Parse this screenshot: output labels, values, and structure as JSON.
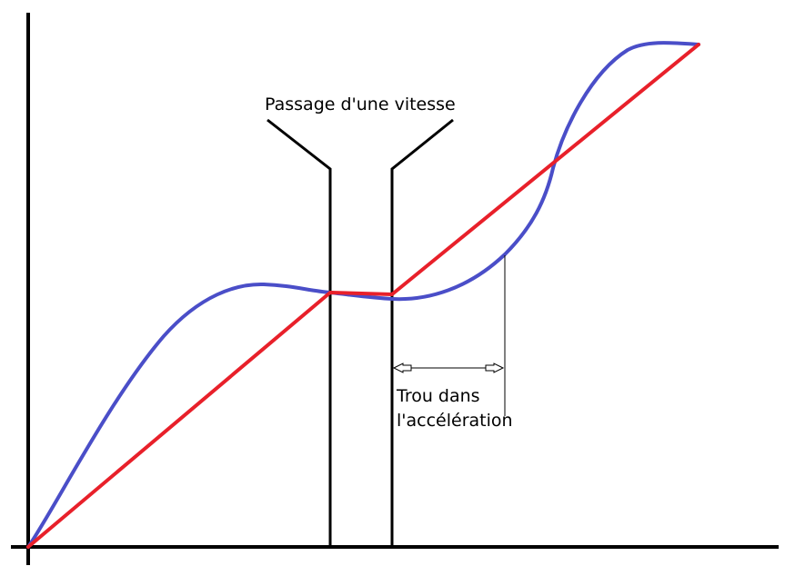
{
  "annotations": {
    "gear_shift_label": "Passage d'une vitesse",
    "acceleration_gap_line1": "Trou dans",
    "acceleration_gap_line2": "l'accélération"
  },
  "colors": {
    "axes": "#000000",
    "red_curve": "#e8202a",
    "blue_curve": "#4a4ec8",
    "annotation_lines": "#000000"
  },
  "chart_data": {
    "type": "line",
    "series": [
      {
        "color": "red",
        "description_points": [
          [
            0,
            0
          ],
          [
            0.4,
            0.5
          ],
          [
            0.5,
            0.5
          ],
          [
            1,
            1
          ]
        ]
      },
      {
        "color": "blue"
      }
    ]
  }
}
